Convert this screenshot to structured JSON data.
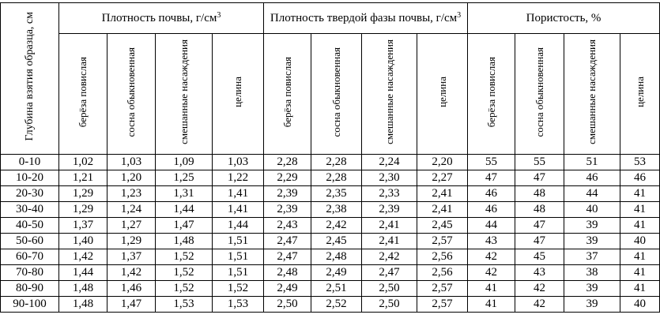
{
  "header": {
    "depth": "Глубина взятия образца, см",
    "groups": [
      {
        "title": "Плотность почвы, г/см",
        "sup": "3"
      },
      {
        "title": "Плотность твердой фазы почвы, г/см",
        "sup": "3"
      },
      {
        "title": "Пористость, %",
        "sup": ""
      }
    ],
    "subcolumns": [
      "берёза повислая",
      "сосна обыкновенная",
      "смешанные насаждения",
      "целина"
    ]
  },
  "rows": [
    {
      "depth": "0-10",
      "values": [
        "1,02",
        "1,03",
        "1,09",
        "1,03",
        "2,28",
        "2,28",
        "2,24",
        "2,20",
        "55",
        "55",
        "51",
        "53"
      ]
    },
    {
      "depth": "10-20",
      "values": [
        "1,21",
        "1,20",
        "1,25",
        "1,22",
        "2,29",
        "2,28",
        "2,30",
        "2,27",
        "47",
        "47",
        "46",
        "46"
      ]
    },
    {
      "depth": "20-30",
      "values": [
        "1,29",
        "1,23",
        "1,31",
        "1,41",
        "2,39",
        "2,35",
        "2,33",
        "2,41",
        "46",
        "48",
        "44",
        "41"
      ]
    },
    {
      "depth": "30-40",
      "values": [
        "1,29",
        "1,24",
        "1,44",
        "1,41",
        "2,39",
        "2,38",
        "2,39",
        "2,41",
        "46",
        "48",
        "40",
        "41"
      ]
    },
    {
      "depth": "40-50",
      "values": [
        "1,37",
        "1,27",
        "1,47",
        "1,44",
        "2,43",
        "2,42",
        "2,41",
        "2,45",
        "44",
        "47",
        "39",
        "41"
      ]
    },
    {
      "depth": "50-60",
      "values": [
        "1,40",
        "1,29",
        "1,48",
        "1,51",
        "2,47",
        "2,45",
        "2,41",
        "2,57",
        "43",
        "47",
        "39",
        "40"
      ]
    },
    {
      "depth": "60-70",
      "values": [
        "1,42",
        "1,37",
        "1,52",
        "1,51",
        "2,47",
        "2,48",
        "2,42",
        "2,56",
        "42",
        "45",
        "37",
        "41"
      ]
    },
    {
      "depth": "70-80",
      "values": [
        "1,44",
        "1,42",
        "1,52",
        "1,51",
        "2,48",
        "2,49",
        "2,47",
        "2,56",
        "42",
        "43",
        "38",
        "41"
      ]
    },
    {
      "depth": "80-90",
      "values": [
        "1,48",
        "1,46",
        "1,52",
        "1,52",
        "2,49",
        "2,51",
        "2,50",
        "2,57",
        "41",
        "42",
        "39",
        "41"
      ]
    },
    {
      "depth": "90-100",
      "values": [
        "1,48",
        "1,47",
        "1,53",
        "1,53",
        "2,50",
        "2,52",
        "2,50",
        "2,57",
        "41",
        "42",
        "39",
        "40"
      ]
    }
  ]
}
